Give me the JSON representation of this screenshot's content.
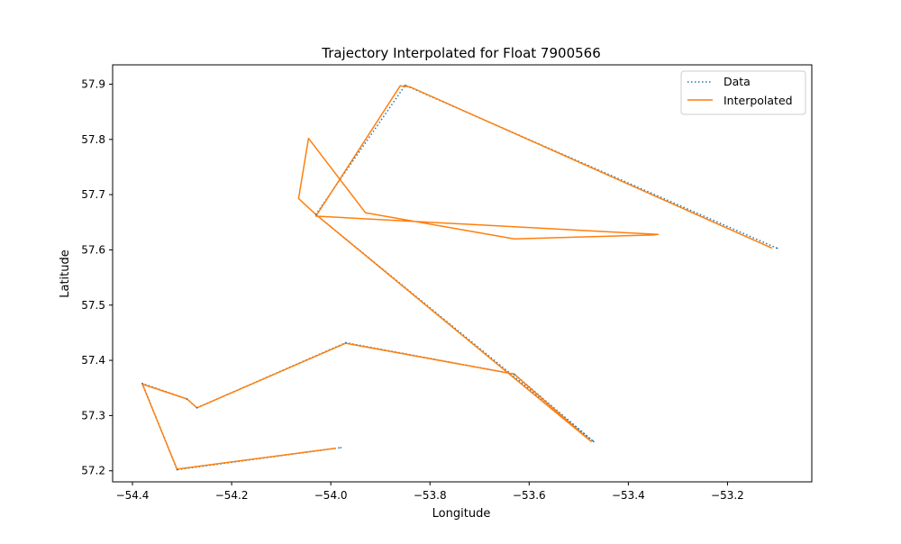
{
  "chart_data": {
    "type": "line",
    "title": "Trajectory Interpolated for Float 7900566",
    "xlabel": "Longitude",
    "ylabel": "Latitude",
    "xlim": [
      -54.44,
      -53.03
    ],
    "ylim": [
      57.18,
      57.935
    ],
    "xticks": [
      -54.4,
      -54.2,
      -54.0,
      -53.8,
      -53.6,
      -53.4,
      -53.2
    ],
    "xtick_labels": [
      "−54.4",
      "−54.2",
      "−54.0",
      "−53.8",
      "−53.6",
      "−53.4",
      "−53.2"
    ],
    "yticks": [
      57.2,
      57.3,
      57.4,
      57.5,
      57.6,
      57.7,
      57.8,
      57.9
    ],
    "ytick_labels": [
      "57.2",
      "57.3",
      "57.4",
      "57.5",
      "57.6",
      "57.7",
      "57.8",
      "57.9"
    ],
    "grid": false,
    "legend_position": "top-right",
    "series": [
      {
        "name": "Data",
        "style": "dotted",
        "color": "#1f77b4",
        "x": [
          -53.1,
          -53.85,
          -54.03,
          -53.47,
          -53.63,
          -53.97,
          -54.27,
          -54.29,
          -54.38,
          -54.31,
          -53.98
        ],
        "y": [
          57.603,
          57.898,
          57.664,
          57.253,
          57.375,
          57.432,
          57.314,
          57.33,
          57.358,
          57.202,
          57.242
        ]
      },
      {
        "name": "Interpolated",
        "style": "solid",
        "color": "#ff7f0e",
        "x": [
          -53.11,
          -53.84,
          -53.86,
          -54.03,
          -53.34,
          -53.35,
          -53.63,
          -53.93,
          -54.045,
          -54.065,
          -54.03,
          -53.475,
          -53.63,
          -53.97,
          -54.27,
          -54.29,
          -54.38,
          -54.31,
          -53.99
        ],
        "y": [
          57.603,
          57.895,
          57.897,
          57.661,
          57.628,
          57.627,
          57.62,
          57.667,
          57.802,
          57.693,
          57.664,
          57.253,
          57.375,
          57.431,
          57.314,
          57.33,
          57.357,
          57.203,
          57.241
        ]
      }
    ]
  }
}
